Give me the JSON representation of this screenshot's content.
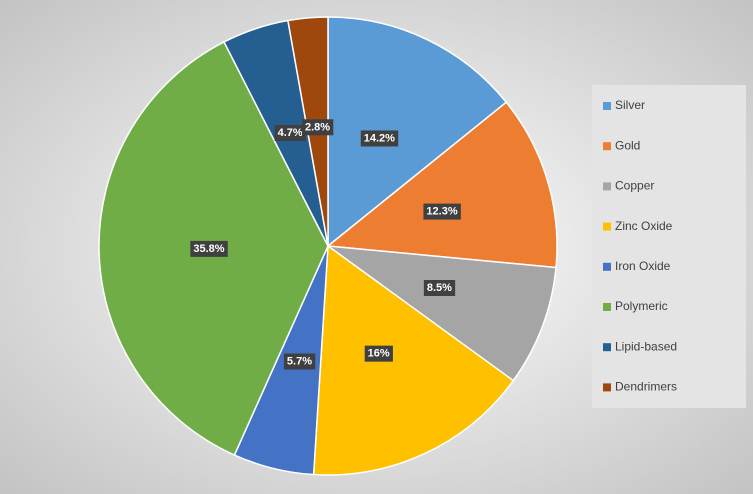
{
  "chart_data": {
    "type": "pie",
    "categories": [
      "Silver",
      "Gold",
      "Copper",
      "Zinc Oxide",
      "Iron Oxide",
      "Polymeric",
      "Lipid-based",
      "Dendrimers"
    ],
    "values": [
      14.2,
      12.3,
      8.5,
      16,
      5.7,
      35.8,
      4.7,
      2.8
    ],
    "value_labels": [
      "14.2%",
      "12.3%",
      "8.5%",
      "16%",
      "5.7%",
      "35.8%",
      "4.7%",
      "2.8%"
    ],
    "colors": [
      "#5b9bd5",
      "#ed7d31",
      "#a5a5a5",
      "#ffc000",
      "#4472c4",
      "#70ad47",
      "#255e91",
      "#9e480e"
    ],
    "legend": "right"
  }
}
